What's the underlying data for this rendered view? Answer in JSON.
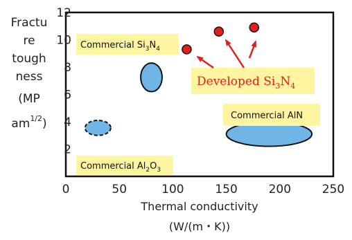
{
  "chart_data": {
    "type": "scatter",
    "xlabel": "Thermal conductivity",
    "xlabel_units": "(W/(m・K))",
    "ylabel_lines": [
      "Fractu",
      "re",
      "tough",
      "ness",
      "(MP",
      "am"
    ],
    "ylabel_sup": "1/2",
    "ylabel_close": ")",
    "x_ticks": [
      "0",
      "50",
      "100",
      "150",
      "200",
      "250"
    ],
    "y_ticks": [
      "2",
      "4",
      "6",
      "8",
      "10",
      "12"
    ],
    "xlim": [
      0,
      250
    ],
    "ylim": [
      0,
      12
    ],
    "grid": false,
    "regions": [
      {
        "name": "Commercial Si3N4",
        "label_main": "Commercial Si",
        "sub1": "3",
        "mid": "N",
        "sub2": "4",
        "x": [
          70,
          90
        ],
        "y": [
          6.2,
          8.3
        ],
        "color": "#6fb6e6",
        "outline": "solid"
      },
      {
        "name": "Commercial Al2O3",
        "label_main": "Commercial Al",
        "sub1": "2",
        "mid": "O",
        "sub2": "3",
        "x": [
          18,
          42
        ],
        "y": [
          3.0,
          4.1
        ],
        "color": "#6fb6e6",
        "outline": "dashed"
      },
      {
        "name": "Commercial AlN",
        "label_main": "Commercial AlN",
        "x": [
          150,
          230
        ],
        "y": [
          2.2,
          4.0
        ],
        "color": "#6fb6e6",
        "outline": "solid"
      }
    ],
    "series": [
      {
        "name": "Developed Si3N4",
        "label_main": "Developed Si",
        "sub1": "3",
        "mid": "N",
        "sub2": "4",
        "color": "#e0201c",
        "points": [
          {
            "x": 113,
            "y": 9.3
          },
          {
            "x": 143,
            "y": 10.6
          },
          {
            "x": 176,
            "y": 10.9
          }
        ]
      }
    ]
  }
}
